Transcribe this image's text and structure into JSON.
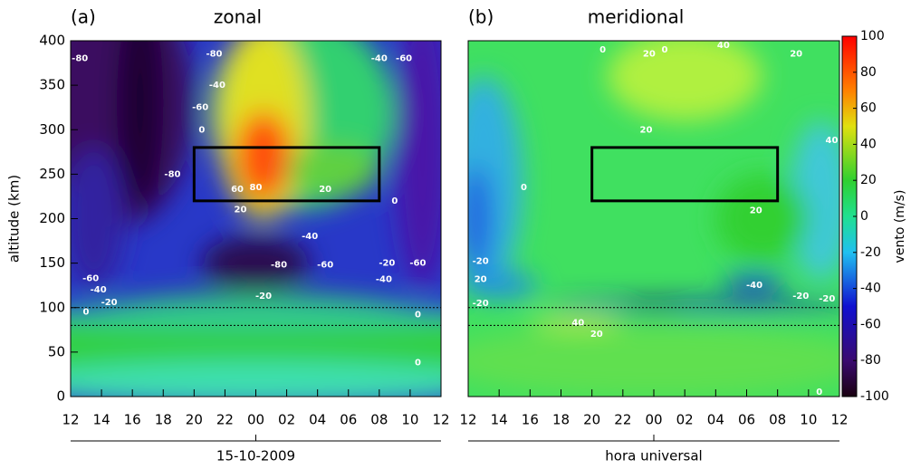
{
  "chart_data": [
    {
      "type": "heatmap",
      "panel_label": "(a)",
      "title": "zonal",
      "xlabel": "15-10-2009",
      "ylabel": "altitude (km)",
      "xlim": [
        0,
        24
      ],
      "xticks": [
        {
          "value": 0,
          "label": "12"
        },
        {
          "value": 2,
          "label": "14"
        },
        {
          "value": 4,
          "label": "16"
        },
        {
          "value": 6,
          "label": "18"
        },
        {
          "value": 8,
          "label": "20"
        },
        {
          "value": 10,
          "label": "22"
        },
        {
          "value": 12,
          "label": "00"
        },
        {
          "value": 14,
          "label": "02"
        },
        {
          "value": 16,
          "label": "04"
        },
        {
          "value": 18,
          "label": "06"
        },
        {
          "value": 20,
          "label": "08"
        },
        {
          "value": 22,
          "label": "10"
        },
        {
          "value": 24,
          "label": "12"
        }
      ],
      "ylim": [
        0,
        400
      ],
      "yticks": [
        0,
        50,
        100,
        150,
        200,
        250,
        300,
        350,
        400
      ],
      "box": {
        "x": [
          8,
          20
        ],
        "y": [
          220,
          280
        ]
      },
      "hlines": [
        100,
        80
      ],
      "contour_labels": [
        -80,
        -80,
        -40,
        -60,
        -40,
        -60,
        -80,
        0,
        20,
        60,
        80,
        20,
        -80,
        -40,
        -60,
        -60,
        -40,
        -20,
        0,
        -20,
        0,
        0,
        -40,
        -60,
        -20,
        0
      ]
    },
    {
      "type": "heatmap",
      "panel_label": "(b)",
      "title": "meridional",
      "xlabel": "hora universal",
      "xlim": [
        0,
        24
      ],
      "xticks": [
        {
          "value": 0,
          "label": "12"
        },
        {
          "value": 2,
          "label": "14"
        },
        {
          "value": 4,
          "label": "16"
        },
        {
          "value": 6,
          "label": "18"
        },
        {
          "value": 8,
          "label": "20"
        },
        {
          "value": 10,
          "label": "22"
        },
        {
          "value": 12,
          "label": "00"
        },
        {
          "value": 14,
          "label": "02"
        },
        {
          "value": 16,
          "label": "04"
        },
        {
          "value": 18,
          "label": "06"
        },
        {
          "value": 20,
          "label": "08"
        },
        {
          "value": 22,
          "label": "10"
        },
        {
          "value": 24,
          "label": "12"
        }
      ],
      "ylim": [
        0,
        400
      ],
      "box": {
        "x": [
          8,
          20
        ],
        "y": [
          220,
          280
        ]
      },
      "hlines": [
        100,
        80
      ],
      "contour_labels": [
        20,
        0,
        0,
        40,
        20,
        40,
        20,
        0,
        20,
        -20,
        20,
        -20,
        40,
        20,
        -40,
        -20,
        -20,
        0
      ]
    },
    {
      "type": "colorbar",
      "label": "vento (m/s)",
      "ylim": [
        -100,
        100
      ],
      "yticks": [
        -100,
        -80,
        -60,
        -40,
        -20,
        0,
        20,
        40,
        60,
        80,
        100
      ]
    }
  ]
}
